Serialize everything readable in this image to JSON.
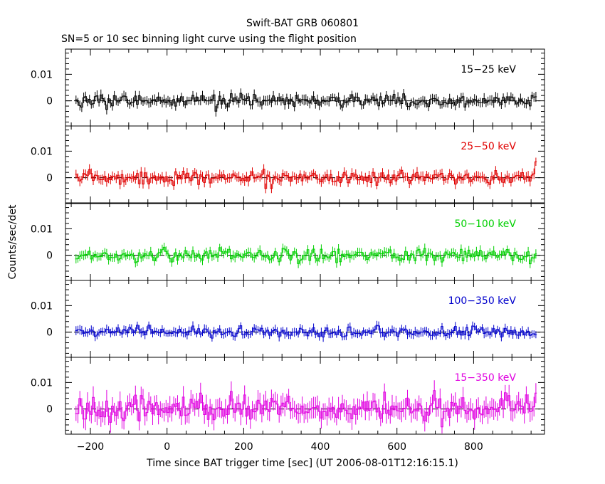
{
  "title": "Swift-BAT GRB 060801",
  "subtitle": "SN=5 or 10 sec binning light curve using the flight position",
  "xlabel": "Time since BAT trigger time [sec] (UT 2006-08-01T12:16:15.1)",
  "ylabel": "Counts/sec/det",
  "chart_data": {
    "type": "line",
    "xlim": [
      -265,
      985
    ],
    "ylim": [
      -0.0095,
      0.0195
    ],
    "x_ticks": [
      -200,
      0,
      200,
      400,
      600,
      800
    ],
    "x_tick_labels": [
      "−200",
      "0",
      "200",
      "400",
      "600",
      "800"
    ],
    "y_ticks": [
      0,
      0.01
    ],
    "y_tick_labels": [
      "0",
      "0.01"
    ],
    "bin_width": 5,
    "x_start": -240,
    "x_end": 965,
    "panels": [
      {
        "name": "15−25 keV",
        "color": "#000000",
        "noise": 0.0014,
        "err": 0.0017,
        "end_value": 0.0015
      },
      {
        "name": "25−50 keV",
        "color": "#e00000",
        "noise": 0.0014,
        "err": 0.0017,
        "end_value": 0.006
      },
      {
        "name": "50−100 keV",
        "color": "#00d000",
        "noise": 0.0015,
        "err": 0.0016,
        "end_value": 0.0005
      },
      {
        "name": "100−350 keV",
        "color": "#0000cc",
        "noise": 0.0011,
        "err": 0.0015,
        "end_value": -0.001
      },
      {
        "name": "15−350 keV",
        "color": "#e000e0",
        "noise": 0.0028,
        "err": 0.0035,
        "end_value": 0.006
      }
    ]
  }
}
